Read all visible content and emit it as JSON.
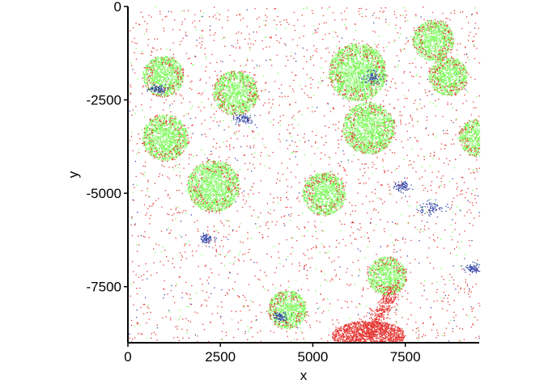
{
  "chart_data": {
    "type": "scatter",
    "xlabel": "x",
    "ylabel": "y",
    "xlim": [
      0,
      9500
    ],
    "ylim": [
      -9000,
      0
    ],
    "x_ticks": [
      0,
      2500,
      5000,
      7500
    ],
    "y_ticks": [
      0,
      -2500,
      -5000,
      -7500
    ],
    "x_tick_labels": [
      "0",
      "2500",
      "5000",
      "7500"
    ],
    "y_tick_labels": [
      "0",
      "-2500",
      "-5000",
      "-7500"
    ],
    "grid": false,
    "legend": "none",
    "series": [
      {
        "color": "#7CFC5A",
        "role": "cluster_core"
      },
      {
        "color": "#E53935",
        "role": "cluster_edge_and_background"
      },
      {
        "color": "#3949AB",
        "role": "sparse_patches"
      }
    ],
    "clusters": [
      {
        "x": 950,
        "y": -1850,
        "r": 550
      },
      {
        "x": 2900,
        "y": -2300,
        "r": 600
      },
      {
        "x": 1000,
        "y": -3500,
        "r": 620
      },
      {
        "x": 2300,
        "y": -4800,
        "r": 700
      },
      {
        "x": 5300,
        "y": -5000,
        "r": 580
      },
      {
        "x": 6200,
        "y": -1750,
        "r": 780
      },
      {
        "x": 6500,
        "y": -3250,
        "r": 700
      },
      {
        "x": 8250,
        "y": -900,
        "r": 550
      },
      {
        "x": 8650,
        "y": -1850,
        "r": 520
      },
      {
        "x": 9450,
        "y": -3500,
        "r": 500
      },
      {
        "x": 4300,
        "y": -8100,
        "r": 520
      },
      {
        "x": 7000,
        "y": -7200,
        "r": 520
      }
    ],
    "blue_patches": [
      {
        "x": 6600,
        "y": -1900,
        "r": 280
      },
      {
        "x": 3100,
        "y": -3000,
        "r": 220
      },
      {
        "x": 8200,
        "y": -5400,
        "r": 260
      },
      {
        "x": 7400,
        "y": -4800,
        "r": 200
      },
      {
        "x": 4100,
        "y": -8300,
        "r": 200
      },
      {
        "x": 800,
        "y": -2200,
        "r": 180
      },
      {
        "x": 2100,
        "y": -6200,
        "r": 160
      },
      {
        "x": 9300,
        "y": -7000,
        "r": 180
      }
    ],
    "dense_red_region": {
      "x": 6500,
      "y": -8800,
      "r": 900
    }
  }
}
